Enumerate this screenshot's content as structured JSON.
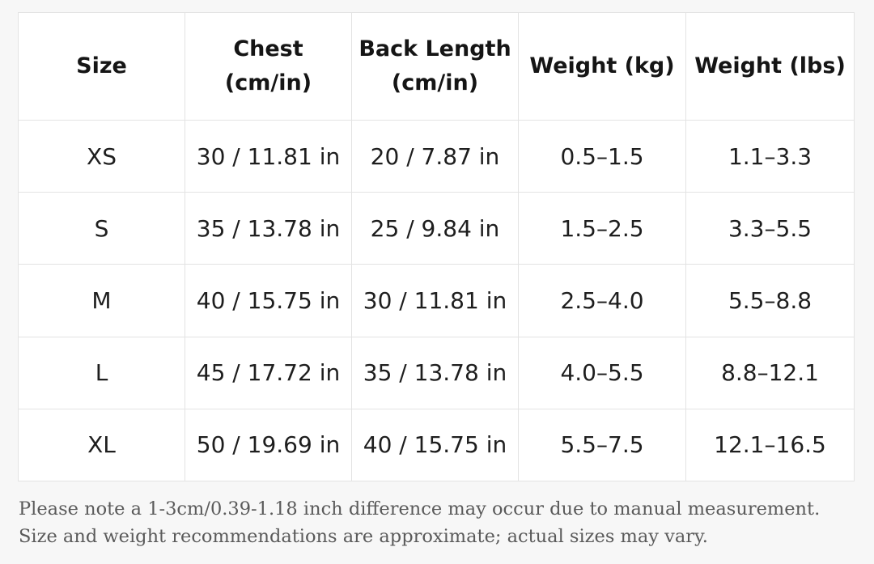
{
  "table": {
    "headers": [
      [
        "Size"
      ],
      [
        "Chest",
        "(cm/in)"
      ],
      [
        "Back Length",
        "(cm/in)"
      ],
      [
        "Weight (kg)"
      ],
      [
        "Weight (lbs)"
      ]
    ],
    "rows": [
      [
        "XS",
        "30 / 11.81 in",
        "20 / 7.87 in",
        "0.5–1.5",
        "1.1–3.3"
      ],
      [
        "S",
        "35 / 13.78 in",
        "25 / 9.84 in",
        "1.5–2.5",
        "3.3–5.5"
      ],
      [
        "M",
        "40 / 15.75 in",
        "30 / 11.81 in",
        "2.5–4.0",
        "5.5–8.8"
      ],
      [
        "L",
        "45 / 17.72 in",
        "35 / 13.78 in",
        "4.0–5.5",
        "8.8–12.1"
      ],
      [
        "XL",
        "50 / 19.69 in",
        "40 / 15.75 in",
        "5.5–7.5",
        "12.1–16.5"
      ]
    ]
  },
  "notes": [
    "Please note a 1-3cm/0.39-1.18 inch difference may occur due to manual measurement.",
    "Size and weight recommendations are approximate; actual sizes may vary."
  ]
}
